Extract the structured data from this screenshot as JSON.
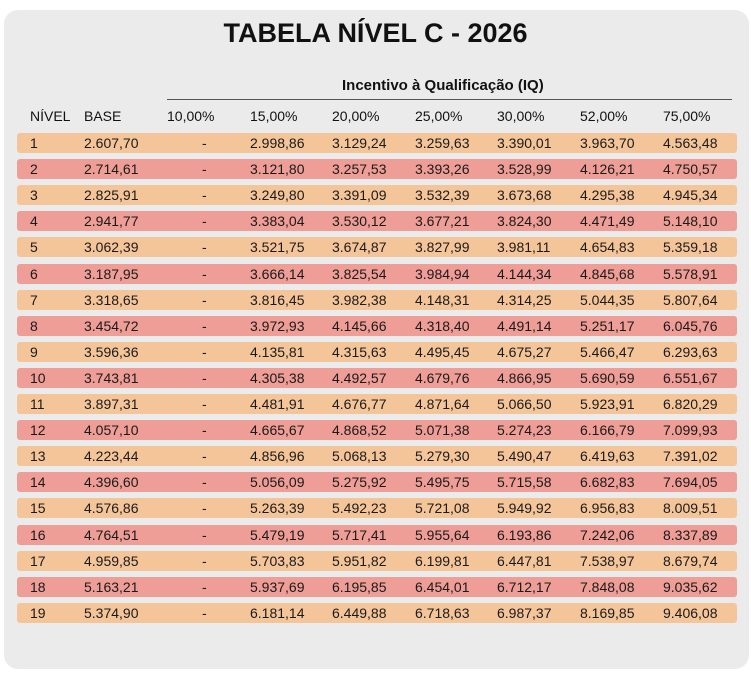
{
  "title": "TABELA NÍVEL C - 2026",
  "group_header": "Incentivo à Qualificação (IQ)",
  "columns": [
    "NÍVEL",
    "BASE",
    "10,00%",
    "15,00%",
    "20,00%",
    "25,00%",
    "30,00%",
    "52,00%",
    "75,00%"
  ],
  "colors": {
    "odd_row": "#f5c59a",
    "even_row": "#ee9e96",
    "card": "#ebebeb"
  },
  "rows": [
    [
      "1",
      "2.607,70",
      "-",
      "2.998,86",
      "3.129,24",
      "3.259,63",
      "3.390,01",
      "3.963,70",
      "4.563,48"
    ],
    [
      "2",
      "2.714,61",
      "-",
      "3.121,80",
      "3.257,53",
      "3.393,26",
      "3.528,99",
      "4.126,21",
      "4.750,57"
    ],
    [
      "3",
      "2.825,91",
      "-",
      "3.249,80",
      "3.391,09",
      "3.532,39",
      "3.673,68",
      "4.295,38",
      "4.945,34"
    ],
    [
      "4",
      "2.941,77",
      "-",
      "3.383,04",
      "3.530,12",
      "3.677,21",
      "3.824,30",
      "4.471,49",
      "5.148,10"
    ],
    [
      "5",
      "3.062,39",
      "-",
      "3.521,75",
      "3.674,87",
      "3.827,99",
      "3.981,11",
      "4.654,83",
      "5.359,18"
    ],
    [
      "6",
      "3.187,95",
      "-",
      "3.666,14",
      "3.825,54",
      "3.984,94",
      "4.144,34",
      "4.845,68",
      "5.578,91"
    ],
    [
      "7",
      "3.318,65",
      "-",
      "3.816,45",
      "3.982,38",
      "4.148,31",
      "4.314,25",
      "5.044,35",
      "5.807,64"
    ],
    [
      "8",
      "3.454,72",
      "-",
      "3.972,93",
      "4.145,66",
      "4.318,40",
      "4.491,14",
      "5.251,17",
      "6.045,76"
    ],
    [
      "9",
      "3.596,36",
      "-",
      "4.135,81",
      "4.315,63",
      "4.495,45",
      "4.675,27",
      "5.466,47",
      "6.293,63"
    ],
    [
      "10",
      "3.743,81",
      "-",
      "4.305,38",
      "4.492,57",
      "4.679,76",
      "4.866,95",
      "5.690,59",
      "6.551,67"
    ],
    [
      "11",
      "3.897,31",
      "-",
      "4.481,91",
      "4.676,77",
      "4.871,64",
      "5.066,50",
      "5.923,91",
      "6.820,29"
    ],
    [
      "12",
      "4.057,10",
      "-",
      "4.665,67",
      "4.868,52",
      "5.071,38",
      "5.274,23",
      "6.166,79",
      "7.099,93"
    ],
    [
      "13",
      "4.223,44",
      "-",
      "4.856,96",
      "5.068,13",
      "5.279,30",
      "5.490,47",
      "6.419,63",
      "7.391,02"
    ],
    [
      "14",
      "4.396,60",
      "-",
      "5.056,09",
      "5.275,92",
      "5.495,75",
      "5.715,58",
      "6.682,83",
      "7.694,05"
    ],
    [
      "15",
      "4.576,86",
      "-",
      "5.263,39",
      "5.492,23",
      "5.721,08",
      "5.949,92",
      "6.956,83",
      "8.009,51"
    ],
    [
      "16",
      "4.764,51",
      "-",
      "5.479,19",
      "5.717,41",
      "5.955,64",
      "6.193,86",
      "7.242,06",
      "8.337,89"
    ],
    [
      "17",
      "4.959,85",
      "-",
      "5.703,83",
      "5.951,82",
      "6.199,81",
      "6.447,81",
      "7.538,97",
      "8.679,74"
    ],
    [
      "18",
      "5.163,21",
      "-",
      "5.937,69",
      "6.195,85",
      "6.454,01",
      "6.712,17",
      "7.848,08",
      "9.035,62"
    ],
    [
      "19",
      "5.374,90",
      "-",
      "6.181,14",
      "6.449,88",
      "6.718,63",
      "6.987,37",
      "8.169,85",
      "9.406,08"
    ]
  ]
}
